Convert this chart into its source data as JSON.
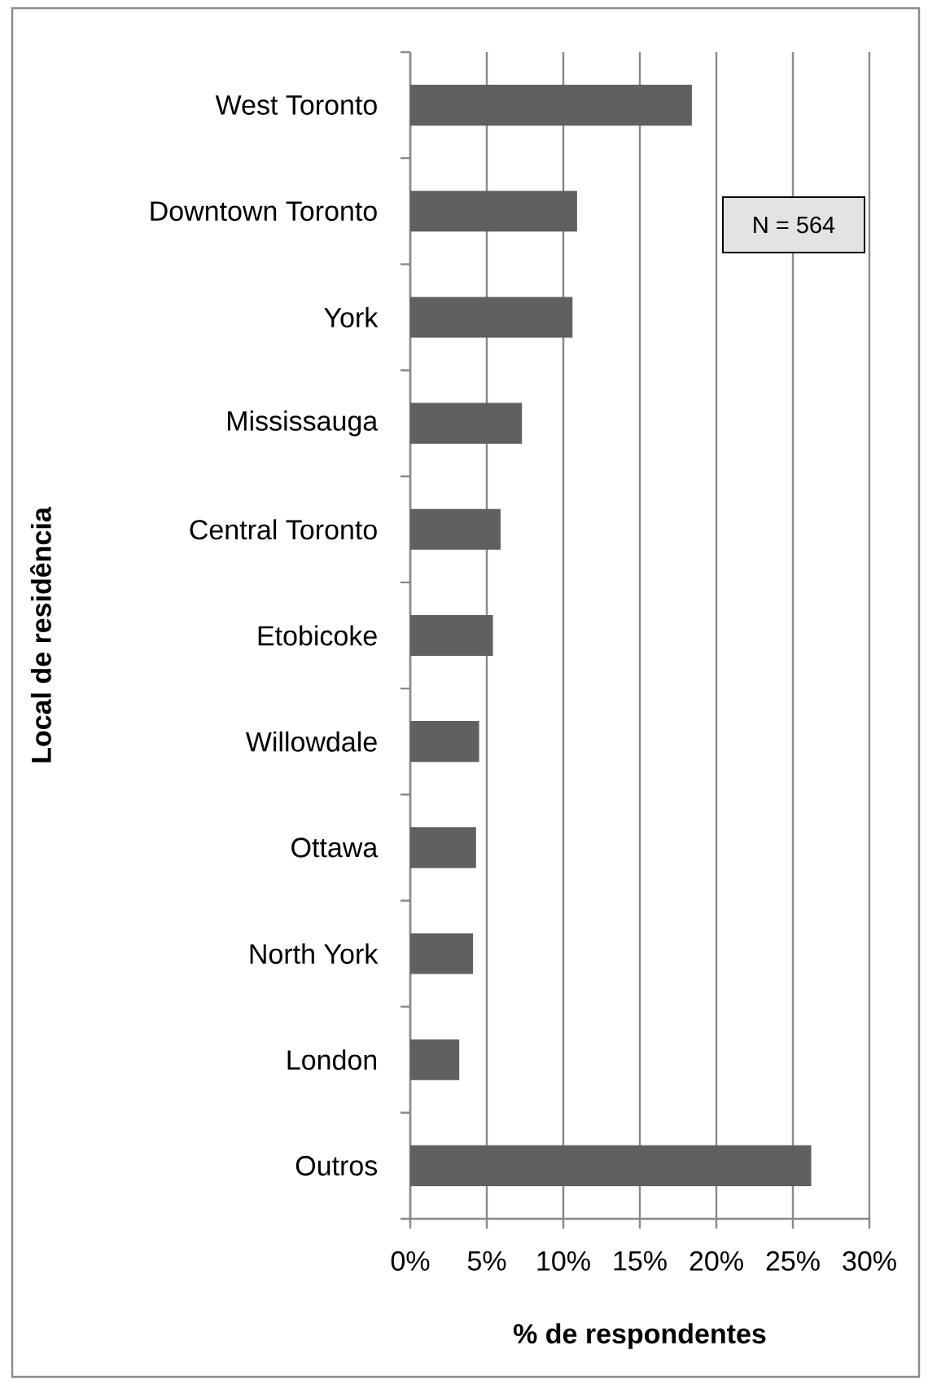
{
  "chart_data": {
    "type": "bar",
    "orientation": "horizontal",
    "categories": [
      "West Toronto",
      "Downtown Toronto",
      "York",
      "Mississauga",
      "Central Toronto",
      "Etobicoke",
      "Willowdale",
      "Ottawa",
      "North York",
      "London",
      "Outros"
    ],
    "values": [
      18.4,
      10.9,
      10.6,
      7.3,
      5.9,
      5.4,
      4.5,
      4.3,
      4.1,
      3.2,
      26.2
    ],
    "color": "#606060",
    "xlim": [
      0,
      30
    ],
    "xticks": [
      {
        "value": 0,
        "label": "0%"
      },
      {
        "value": 5,
        "label": "5%"
      },
      {
        "value": 10,
        "label": "10%"
      },
      {
        "value": 15,
        "label": "15%"
      },
      {
        "value": 20,
        "label": "20%"
      },
      {
        "value": 25,
        "label": "25%"
      },
      {
        "value": 30,
        "label": "30%"
      }
    ],
    "xlabel": "% de respondentes",
    "ylabel": "Local de residência",
    "grid": "x",
    "annotations": [
      "N = 564"
    ]
  }
}
